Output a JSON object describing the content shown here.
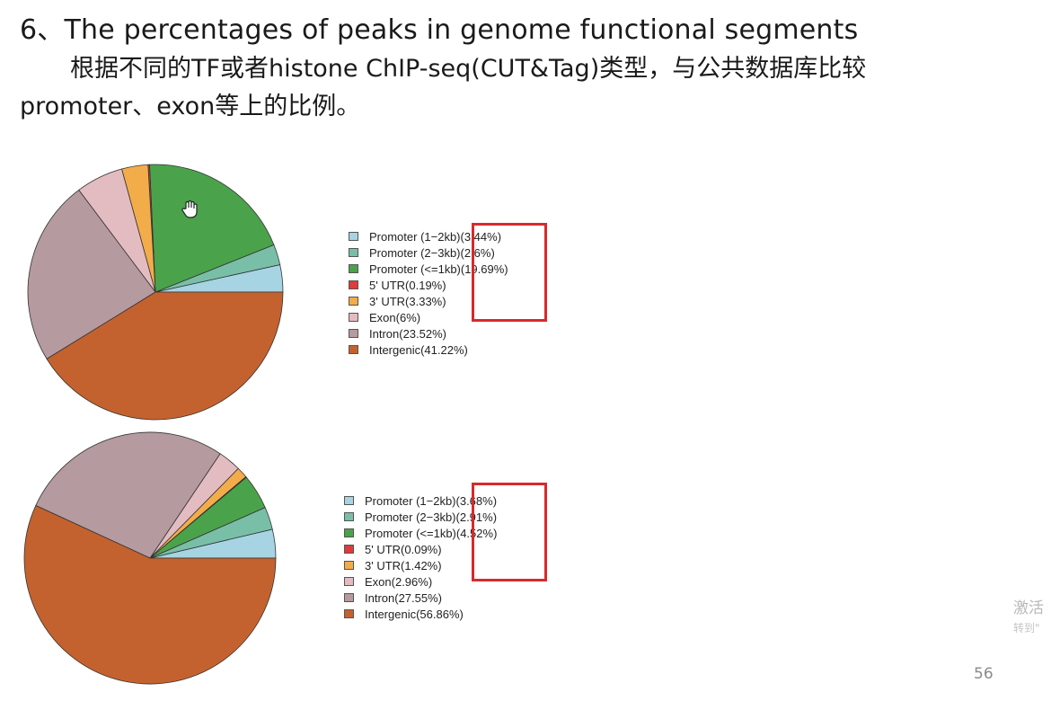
{
  "slide": {
    "title": "6、The percentages of peaks in genome functional segments",
    "desc_line1": "根据不同的TF或者histone ChIP-seq(CUT&Tag)类型，与公共数据库比较",
    "desc_line2": "promoter、exon等上的比例。",
    "page_number": "56",
    "watermark_line1": "激活",
    "watermark_line2": "转到\""
  },
  "chart_data": [
    {
      "type": "pie",
      "series": [
        {
          "label": "Promoter (1−2kb)",
          "pct": "(3.44%)",
          "value": 3.44,
          "color": "#a6d4e3"
        },
        {
          "label": "Promoter (2−3kb)",
          "pct": "(2.6%)",
          "value": 2.6,
          "color": "#79bfa7"
        },
        {
          "label": "Promoter (<=1kb)",
          "pct": "(19.69%)",
          "value": 19.69,
          "color": "#4aa34a"
        },
        {
          "label": "5' UTR",
          "pct": "(0.19%)",
          "value": 0.19,
          "color": "#e03a3a"
        },
        {
          "label": "3' UTR",
          "pct": "(3.33%)",
          "value": 3.33,
          "color": "#f3ac4a"
        },
        {
          "label": "Exon",
          "pct": "(6%)",
          "value": 6,
          "color": "#e3bcc1"
        },
        {
          "label": "Intron",
          "pct": "(23.52%)",
          "value": 23.52,
          "color": "#b59a9f"
        },
        {
          "label": "Intergenic",
          "pct": "(41.22%)",
          "value": 41.22,
          "color": "#c4622f"
        }
      ]
    },
    {
      "type": "pie",
      "series": [
        {
          "label": "Promoter (1−2kb)",
          "pct": "(3.68%)",
          "value": 3.68,
          "color": "#a6d4e3"
        },
        {
          "label": "Promoter (2−3kb)",
          "pct": "(2.91%)",
          "value": 2.91,
          "color": "#79bfa7"
        },
        {
          "label": "Promoter (<=1kb)",
          "pct": "(4.52%)",
          "value": 4.52,
          "color": "#4aa34a"
        },
        {
          "label": "5' UTR",
          "pct": "(0.09%)",
          "value": 0.09,
          "color": "#e03a3a"
        },
        {
          "label": "3' UTR",
          "pct": "(1.42%)",
          "value": 1.42,
          "color": "#f3ac4a"
        },
        {
          "label": "Exon",
          "pct": "(2.96%)",
          "value": 2.96,
          "color": "#e3bcc1"
        },
        {
          "label": "Intron",
          "pct": "(27.55%)",
          "value": 27.55,
          "color": "#b59a9f"
        },
        {
          "label": "Intergenic",
          "pct": "(56.86%)",
          "value": 56.86,
          "color": "#c4622f"
        }
      ]
    }
  ]
}
